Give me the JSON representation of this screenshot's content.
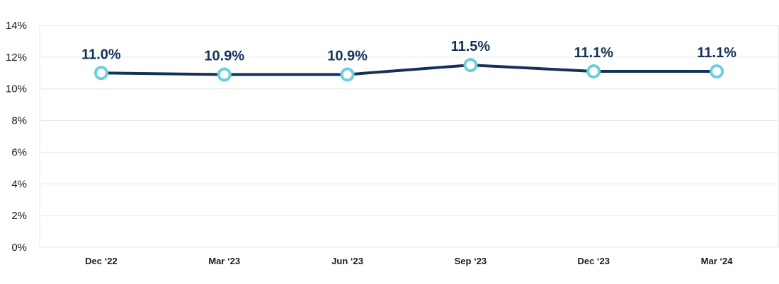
{
  "chart_data": {
    "type": "line",
    "categories": [
      "Dec ‘22",
      "Mar ‘23",
      "Jun ‘23",
      "Sep ‘23",
      "Dec ‘23",
      "Mar ‘24"
    ],
    "values": [
      11.0,
      10.9,
      10.9,
      11.5,
      11.1,
      11.1
    ],
    "data_labels": [
      "11.0%",
      "10.9%",
      "10.9%",
      "11.5%",
      "11.1%",
      "11.1%"
    ],
    "y_ticks": [
      0,
      2,
      4,
      6,
      8,
      10,
      12,
      14
    ],
    "y_tick_labels": [
      "0%",
      "2%",
      "4%",
      "6%",
      "8%",
      "10%",
      "12%",
      "14%"
    ],
    "ylim": [
      0,
      14
    ],
    "grid": true,
    "legend": "none",
    "colors": {
      "line": "#143157",
      "marker_stroke": "#6ccfdb",
      "marker_fill": "#ffffff",
      "grid": "#e6e6e6",
      "label": "#143157",
      "tick_text": "#1b1b1b"
    }
  }
}
